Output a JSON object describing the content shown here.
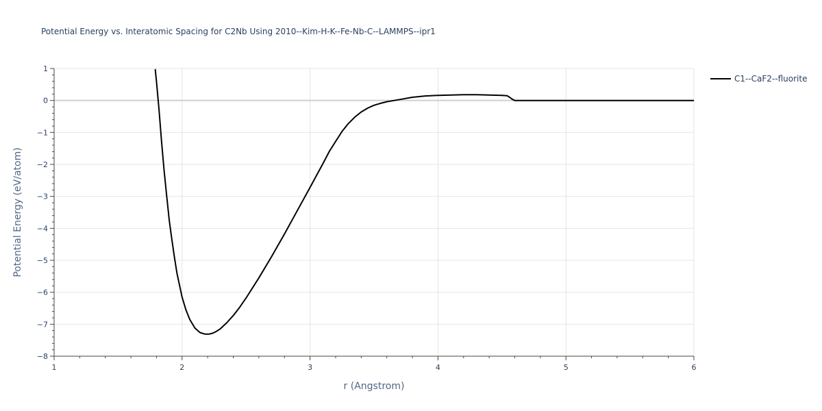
{
  "chart_data": {
    "type": "line",
    "title": "Potential Energy vs. Interatomic Spacing for C2Nb Using 2010--Kim-H-K--Fe-Nb-C--LAMMPS--ipr1",
    "xlabel": "r (Angstrom)",
    "ylabel": "Potential Energy (eV/atom)",
    "xlim": [
      1,
      6
    ],
    "ylim": [
      -8,
      1
    ],
    "xticks": [
      1,
      2,
      3,
      4,
      5,
      6
    ],
    "xtick_labels": [
      "1",
      "2",
      "3",
      "4",
      "5",
      "6"
    ],
    "yticks": [
      -8,
      -7,
      -6,
      -5,
      -4,
      -3,
      -2,
      -1,
      0,
      1
    ],
    "ytick_labels": [
      "−8",
      "−7",
      "−6",
      "−5",
      "−4",
      "−3",
      "−2",
      "−1",
      "0",
      "1"
    ],
    "grid": true,
    "legend_position": "top-right",
    "series": [
      {
        "name": "C1--CaF2--fluorite",
        "color": "#000000",
        "x": [
          1.79,
          1.8,
          1.82,
          1.84,
          1.86,
          1.88,
          1.9,
          1.92,
          1.94,
          1.96,
          1.98,
          2.0,
          2.03,
          2.06,
          2.1,
          2.14,
          2.18,
          2.21,
          2.24,
          2.27,
          2.3,
          2.35,
          2.4,
          2.45,
          2.5,
          2.6,
          2.7,
          2.8,
          2.9,
          3.0,
          3.1,
          3.15,
          3.2,
          3.25,
          3.3,
          3.35,
          3.4,
          3.45,
          3.5,
          3.55,
          3.6,
          3.7,
          3.8,
          3.9,
          4.0,
          4.1,
          4.2,
          4.25,
          4.3,
          4.4,
          4.5,
          4.54,
          4.56,
          4.58,
          4.6,
          4.7,
          5.0,
          5.5,
          6.0
        ],
        "y": [
          0.98,
          0.6,
          -0.3,
          -1.3,
          -2.2,
          -3.0,
          -3.75,
          -4.35,
          -4.9,
          -5.4,
          -5.78,
          -6.15,
          -6.55,
          -6.85,
          -7.12,
          -7.26,
          -7.31,
          -7.31,
          -7.28,
          -7.22,
          -7.14,
          -6.95,
          -6.73,
          -6.47,
          -6.18,
          -5.55,
          -4.88,
          -4.18,
          -3.45,
          -2.72,
          -1.98,
          -1.6,
          -1.28,
          -0.97,
          -0.72,
          -0.52,
          -0.36,
          -0.24,
          -0.15,
          -0.09,
          -0.04,
          0.03,
          0.1,
          0.14,
          0.16,
          0.17,
          0.18,
          0.18,
          0.18,
          0.17,
          0.16,
          0.15,
          0.1,
          0.04,
          0.0,
          0.0,
          0.0,
          0.0,
          0.0
        ]
      }
    ]
  }
}
